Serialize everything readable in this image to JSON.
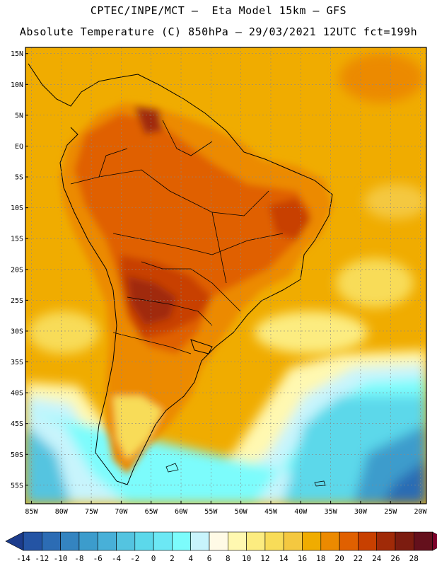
{
  "header": {
    "line1": "CPTEC/INPE/MCT –  Eta Model 15km – GFS",
    "line2": "Absolute Temperature (C) 850hPa – 29/03/2021 12UTC fct=199h"
  },
  "map": {
    "lat_labels": [
      "15N",
      "10N",
      "5N",
      "EQ",
      "5S",
      "10S",
      "15S",
      "20S",
      "25S",
      "30S",
      "35S",
      "40S",
      "45S",
      "50S",
      "55S"
    ],
    "lon_labels": [
      "85W",
      "80W",
      "75W",
      "70W",
      "65W",
      "60W",
      "55W",
      "50W",
      "45W",
      "40W",
      "35W",
      "30W",
      "25W",
      "20W"
    ],
    "extent": {
      "lon_min": -86,
      "lon_max": -19,
      "lat_min": -58,
      "lat_max": 16
    },
    "ocean_color": "#f0ac00"
  },
  "colorbar": {
    "levels": [
      "-14",
      "-12",
      "-10",
      "-8",
      "-6",
      "-4",
      "-2",
      "0",
      "2",
      "4",
      "6",
      "8",
      "10",
      "12",
      "14",
      "16",
      "18",
      "20",
      "22",
      "24",
      "26",
      "28"
    ],
    "colors": [
      "#1c3c8c",
      "#2454a4",
      "#2c6cb4",
      "#3484c0",
      "#3c9ccc",
      "#48b0d8",
      "#54c4e0",
      "#5cd8ea",
      "#6ce8f4",
      "#7cfcfc",
      "#c8f4fc",
      "#fffae6",
      "#fff8b0",
      "#fcec80",
      "#f8dc58",
      "#f4c840",
      "#f0ac00",
      "#ec8a00",
      "#e06000",
      "#c84000",
      "#a02a08",
      "#7c1c10",
      "#64101c",
      "#7c0028"
    ]
  }
}
